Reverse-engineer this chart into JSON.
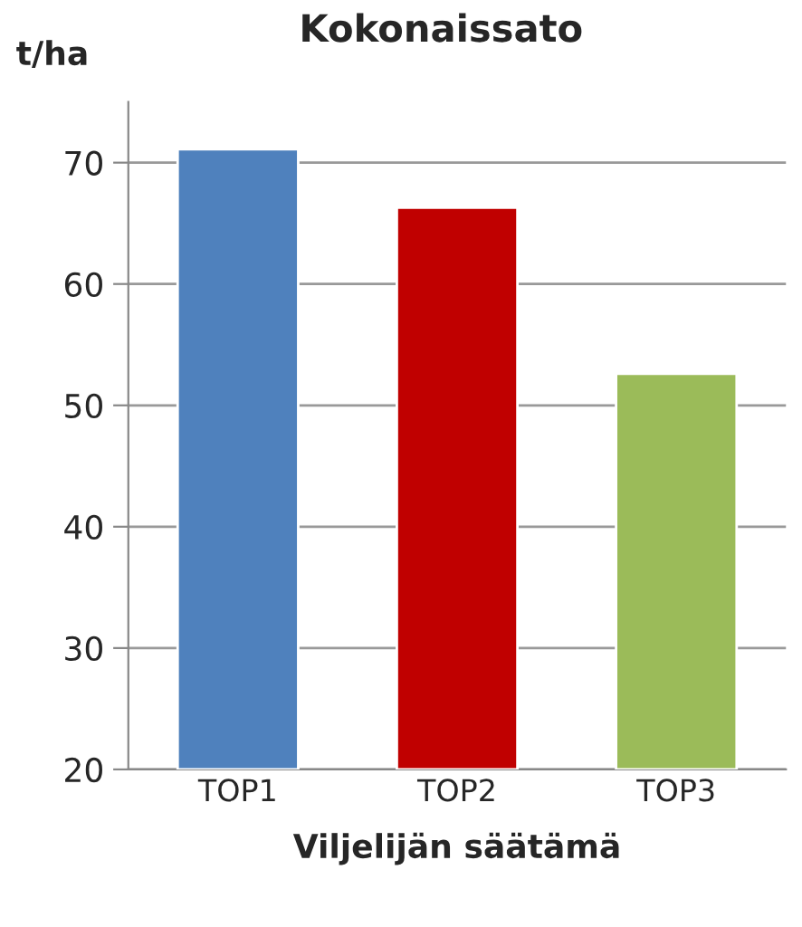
{
  "chart_data": {
    "type": "bar",
    "title": "Kokonaissato",
    "ylabel": "t/ha",
    "xlabel": "Viljelijän säätämä",
    "categories": [
      "TOP1",
      "TOP2",
      "TOP3"
    ],
    "values": [
      71.1,
      66.3,
      52.6
    ],
    "colors": [
      "#4f81bd",
      "#c00000",
      "#9bbb59"
    ],
    "ylim": [
      20,
      75
    ],
    "yticks": [
      20,
      30,
      40,
      50,
      60,
      70
    ],
    "grid": "y",
    "legend": false
  }
}
